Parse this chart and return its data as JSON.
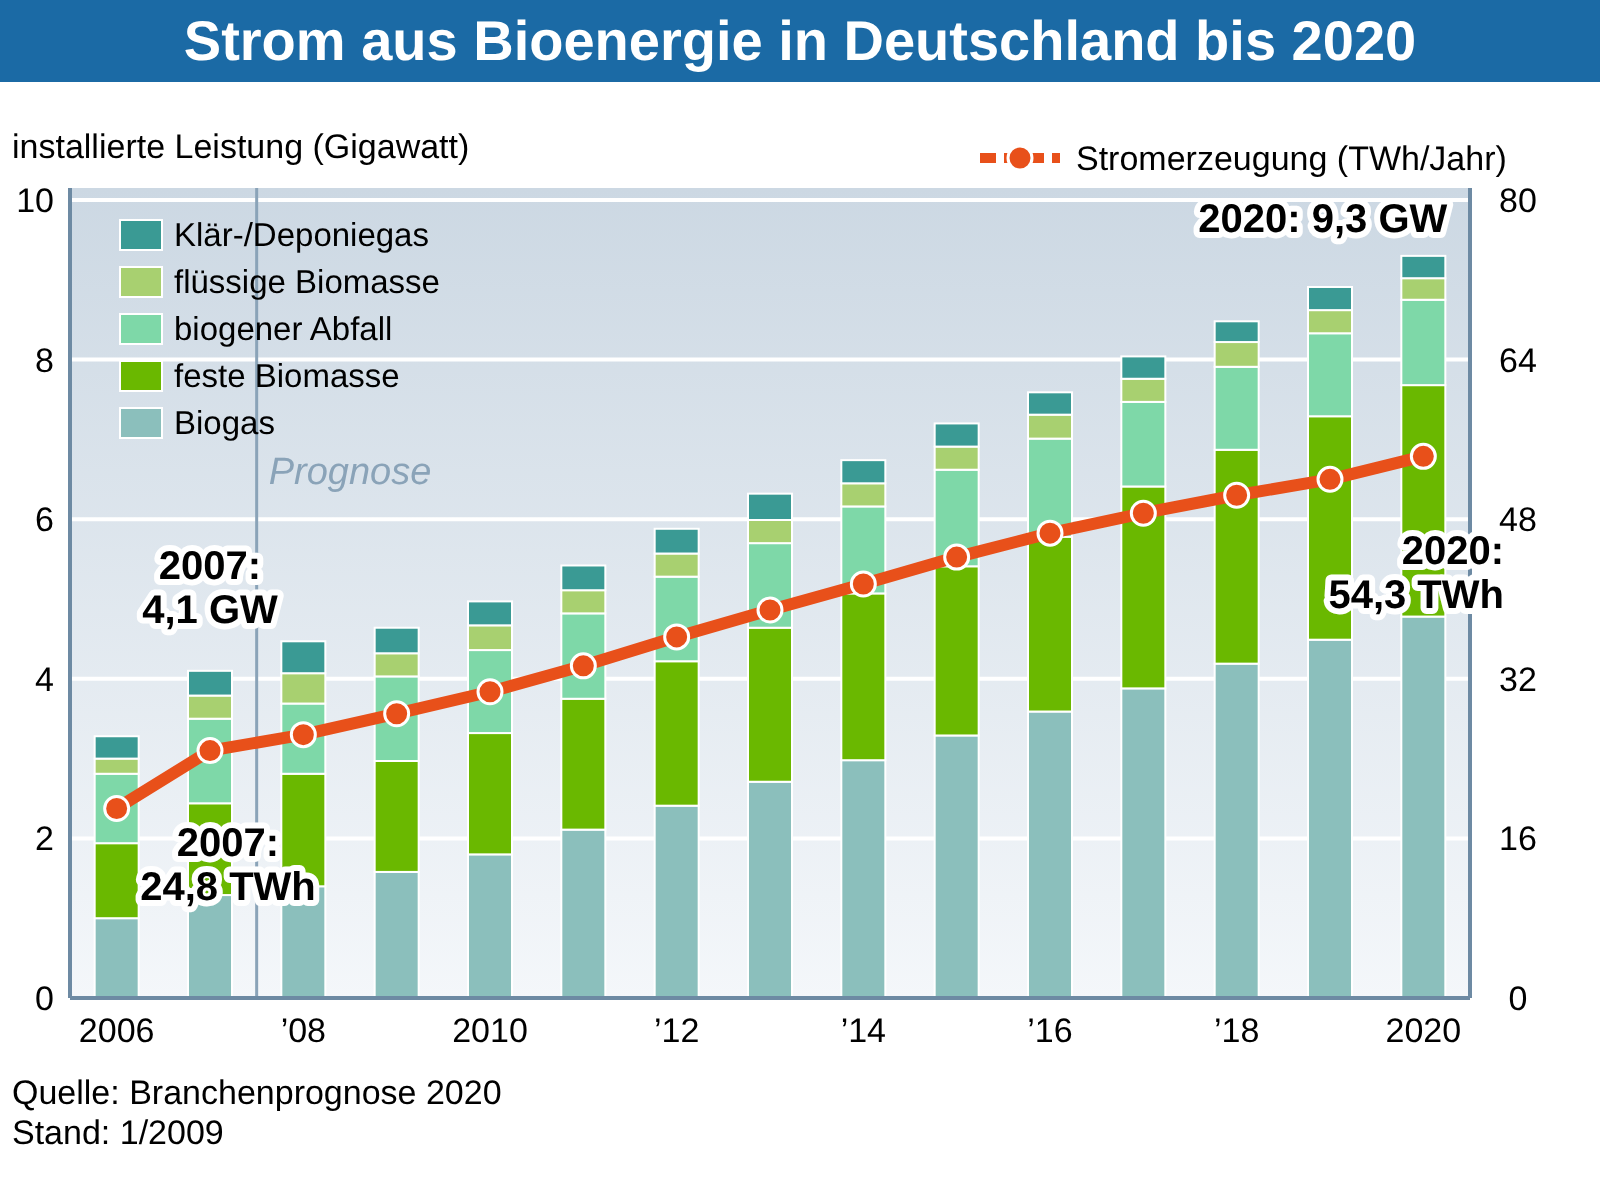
{
  "chart_data": {
    "type": "bar",
    "stacked": true,
    "title": "Strom aus Bioenergie in Deutschland bis 2020",
    "ylabel": "installierte Leistung (Gigawatt)",
    "x": [
      2006,
      2007,
      2008,
      2009,
      2010,
      2011,
      2012,
      2013,
      2014,
      2015,
      2016,
      2017,
      2018,
      2019,
      2020
    ],
    "xlim": [
      2005.5,
      2020.5
    ],
    "xticks": [
      2006,
      {
        "value": 2008,
        "label": "’08"
      },
      2010,
      {
        "value": 2012,
        "label": "’12"
      },
      {
        "value": 2014,
        "label": "’14"
      },
      {
        "value": 2016,
        "label": "’16"
      },
      {
        "value": 2018,
        "label": "’18"
      },
      2020
    ],
    "ylim": [
      0,
      10
    ],
    "yticks": [
      0,
      2,
      4,
      6,
      8,
      10
    ],
    "y2lim": [
      0,
      80
    ],
    "y2ticks": [
      0,
      16,
      32,
      48,
      64,
      80
    ],
    "grid": "y",
    "legend": "top left",
    "series": [
      {
        "name": "Biogas",
        "color": "#8bbfbc",
        "values": [
          1.0,
          1.29,
          1.4,
          1.58,
          1.8,
          2.11,
          2.41,
          2.71,
          2.98,
          3.29,
          3.59,
          3.88,
          4.19,
          4.49,
          4.78
        ]
      },
      {
        "name": "feste Biomasse",
        "color": "#6ab800",
        "values": [
          0.94,
          1.15,
          1.41,
          1.39,
          1.52,
          1.64,
          1.81,
          1.93,
          2.09,
          2.12,
          2.19,
          2.53,
          2.68,
          2.8,
          2.9
        ]
      },
      {
        "name": "biogener Abfall",
        "color": "#7ed8a8",
        "values": [
          0.87,
          1.06,
          0.88,
          1.06,
          1.04,
          1.07,
          1.06,
          1.06,
          1.09,
          1.21,
          1.23,
          1.06,
          1.04,
          1.04,
          1.07
        ]
      },
      {
        "name": "flüssige Biomasse",
        "color": "#a8d070",
        "values": [
          0.19,
          0.29,
          0.38,
          0.29,
          0.31,
          0.29,
          0.29,
          0.29,
          0.29,
          0.29,
          0.3,
          0.29,
          0.31,
          0.29,
          0.27
        ]
      },
      {
        "name": "Klär-/Deponiegas",
        "color": "#3a9a94",
        "values": [
          0.28,
          0.31,
          0.4,
          0.32,
          0.3,
          0.31,
          0.31,
          0.33,
          0.29,
          0.29,
          0.28,
          0.28,
          0.26,
          0.29,
          0.28
        ]
      },
      {
        "name": "Stromerzeugung (TWh/Jahr)",
        "type": "line",
        "axis": "y2",
        "color": "#e8501a",
        "marker": "circle",
        "values": [
          19.0,
          24.8,
          26.4,
          28.5,
          30.7,
          33.3,
          36.2,
          38.9,
          41.5,
          44.2,
          46.6,
          48.6,
          50.4,
          52.0,
          54.3
        ]
      }
    ],
    "ref_lines": [
      {
        "axis": "x",
        "value": 2007.5,
        "label": "Prognose",
        "color": "#8aa3b8"
      }
    ],
    "annotations": [
      {
        "text": "2007:\n4,1 GW",
        "x": 2007,
        "y": 4.1
      },
      "2007:\n24,8 TWh",
      {
        "text": "2020: 9,3 GW",
        "x": 2020,
        "y": 9.3
      },
      "2020:\n54,3 TWh",
      "Quelle: Branchenprognose 2020",
      "Stand: 1/2009"
    ]
  }
}
